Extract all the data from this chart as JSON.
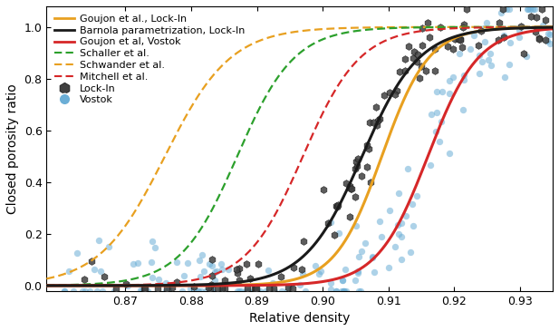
{
  "xlim": [
    0.858,
    0.935
  ],
  "ylim": [
    -0.02,
    1.08
  ],
  "xlabel": "Relative density",
  "ylabel": "Closed porosity ratio",
  "xticks": [
    0.87,
    0.88,
    0.89,
    0.9,
    0.91,
    0.92,
    0.93
  ],
  "yticks": [
    0.0,
    0.2,
    0.4,
    0.6,
    0.8,
    1.0
  ],
  "colors": {
    "goujon_lockin": "#e8a020",
    "barnola_lockin": "#1a1a1a",
    "goujon_vostok": "#d62728",
    "schaller": "#2ca02c",
    "schwander": "#e8a020",
    "mitchell": "#d62728",
    "scatter_lockin": "#404040",
    "scatter_vostok": "#6baed6"
  },
  "schwander_params": {
    "rho_mid": 0.876,
    "k": 200
  },
  "schaller_params": {
    "rho_mid": 0.887,
    "k": 230
  },
  "mitchell_params": {
    "rho_mid": 0.897,
    "k": 230
  },
  "goujon_lockin_params": {
    "rho_mid": 0.909,
    "k": 280
  },
  "barnola_lockin_params": {
    "rho_mid": 0.906,
    "k": 230
  },
  "goujon_vostok_params": {
    "rho_mid": 0.916,
    "k": 260
  }
}
